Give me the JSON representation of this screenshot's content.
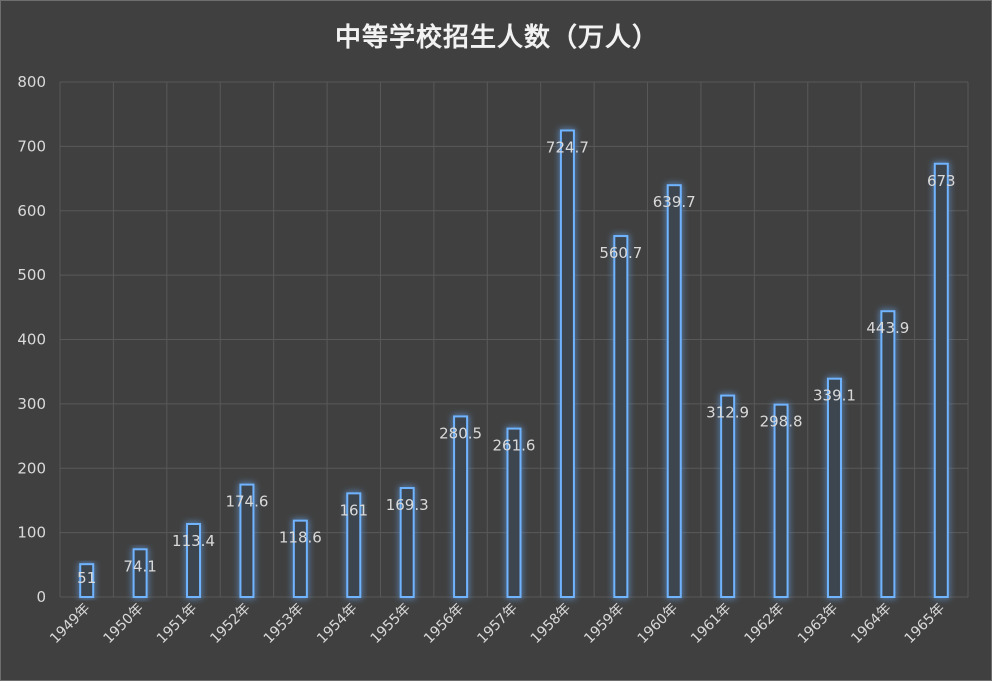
{
  "chart_data": {
    "type": "bar",
    "title": "中等学校招生人数（万人）",
    "xlabel": "",
    "ylabel": "",
    "ylim": [
      0,
      800
    ],
    "yticks": [
      0,
      100,
      200,
      300,
      400,
      500,
      600,
      700,
      800
    ],
    "grid": true,
    "categories": [
      "1949年",
      "1950年",
      "1951年",
      "1952年",
      "1953年",
      "1954年",
      "1955年",
      "1956年",
      "1957年",
      "1958年",
      "1959年",
      "1960年",
      "1961年",
      "1962年",
      "1963年",
      "1964年",
      "1965年"
    ],
    "values": [
      51,
      74.1,
      113.4,
      174.6,
      118.6,
      161,
      169.3,
      280.5,
      261.6,
      724.7,
      560.7,
      639.7,
      312.9,
      298.8,
      339.1,
      443.9,
      673
    ],
    "data_labels": [
      "51",
      "74.1",
      "113.4",
      "174.6",
      "118.6",
      "161",
      "169.3",
      "280.5",
      "261.6",
      "724.7",
      "560.7",
      "639.7",
      "312.9",
      "298.8",
      "339.1",
      "443.9",
      "673"
    ],
    "colors": {
      "background": "#404040",
      "bar_outline": "#6fb3ff",
      "bar_glow": "#1e6fd0",
      "bar_fill": "#3d4450",
      "grid": "#595959",
      "text": "#d9d9d9"
    }
  }
}
